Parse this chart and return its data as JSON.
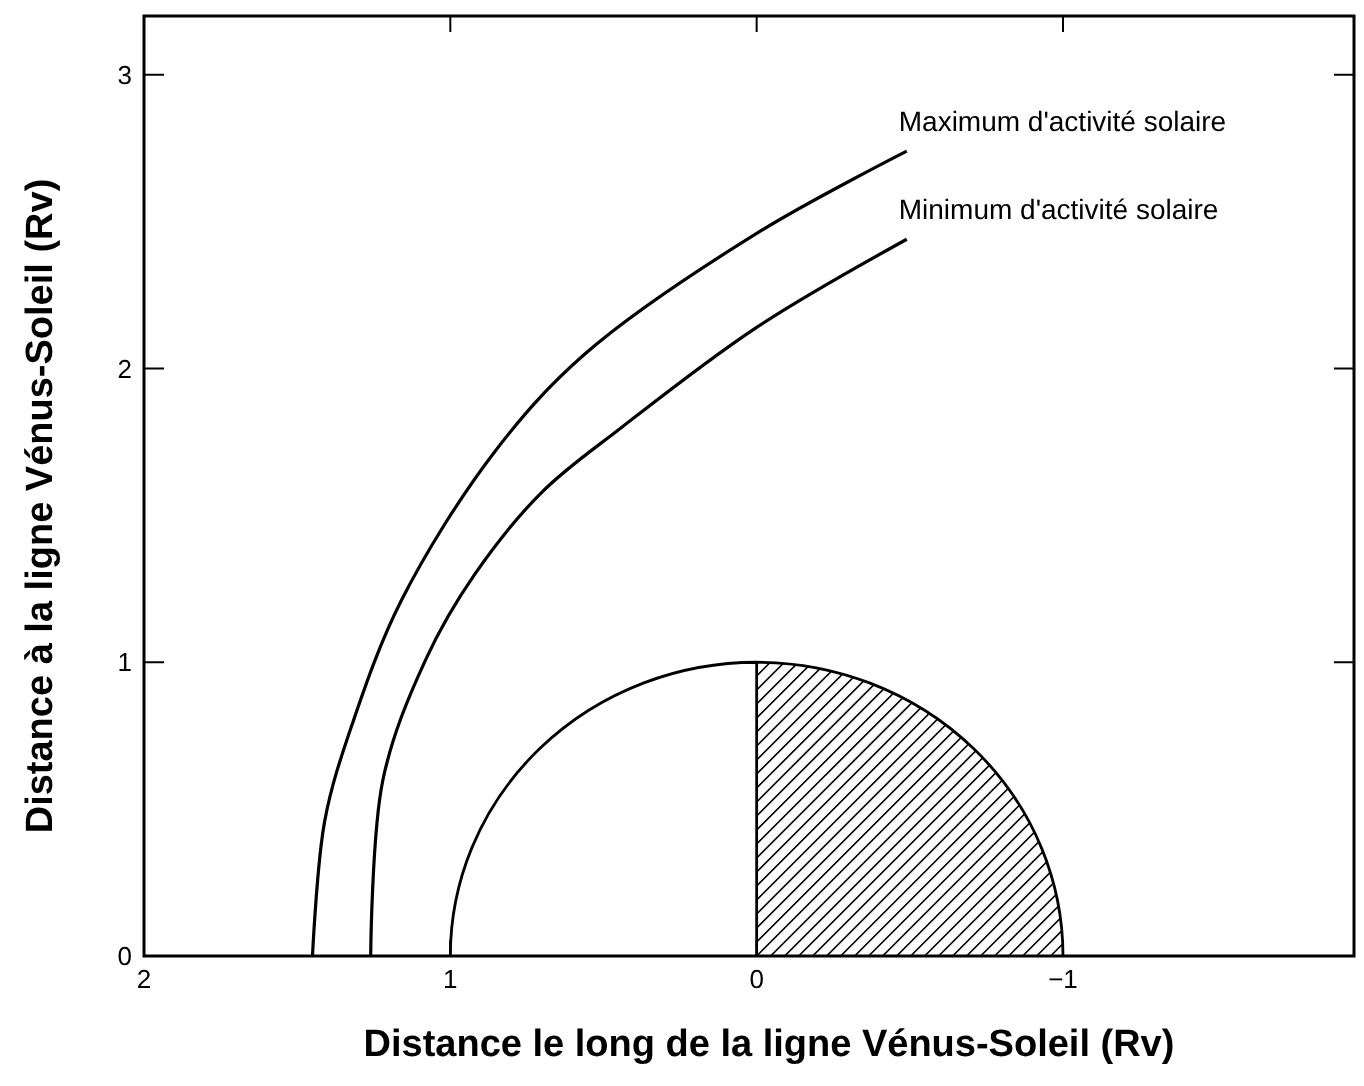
{
  "chart_data": {
    "type": "line",
    "xlabel": "Distance le long de la ligne Vénus-Soleil (Rv)",
    "ylabel": "Distance à la ligne Vénus-Soleil (Rv)",
    "xlim": [
      2,
      -1.95
    ],
    "ylim": [
      0,
      3.2
    ],
    "xticks": [
      2,
      1,
      0,
      -1
    ],
    "yticks": [
      0,
      1,
      2,
      3
    ],
    "grid": false,
    "legend": false,
    "marker": "none",
    "line_style": "solid",
    "series": [
      {
        "name": "Maximum d'activité solaire",
        "color": "#000000",
        "x": [
          1.45,
          1.41,
          1.32,
          1.16,
          0.86,
          0.56,
          0.0,
          -0.49
        ],
        "values": [
          0,
          0.46,
          0.79,
          1.21,
          1.71,
          2.05,
          2.46,
          2.74
        ]
      },
      {
        "name": "Minimum d'activité solaire",
        "color": "#000000",
        "x": [
          1.26,
          1.22,
          1.08,
          0.92,
          0.7,
          0.44,
          0.0,
          -0.49
        ],
        "values": [
          0,
          0.6,
          1.01,
          1.3,
          1.58,
          1.8,
          2.14,
          2.44
        ]
      }
    ]
  }
}
